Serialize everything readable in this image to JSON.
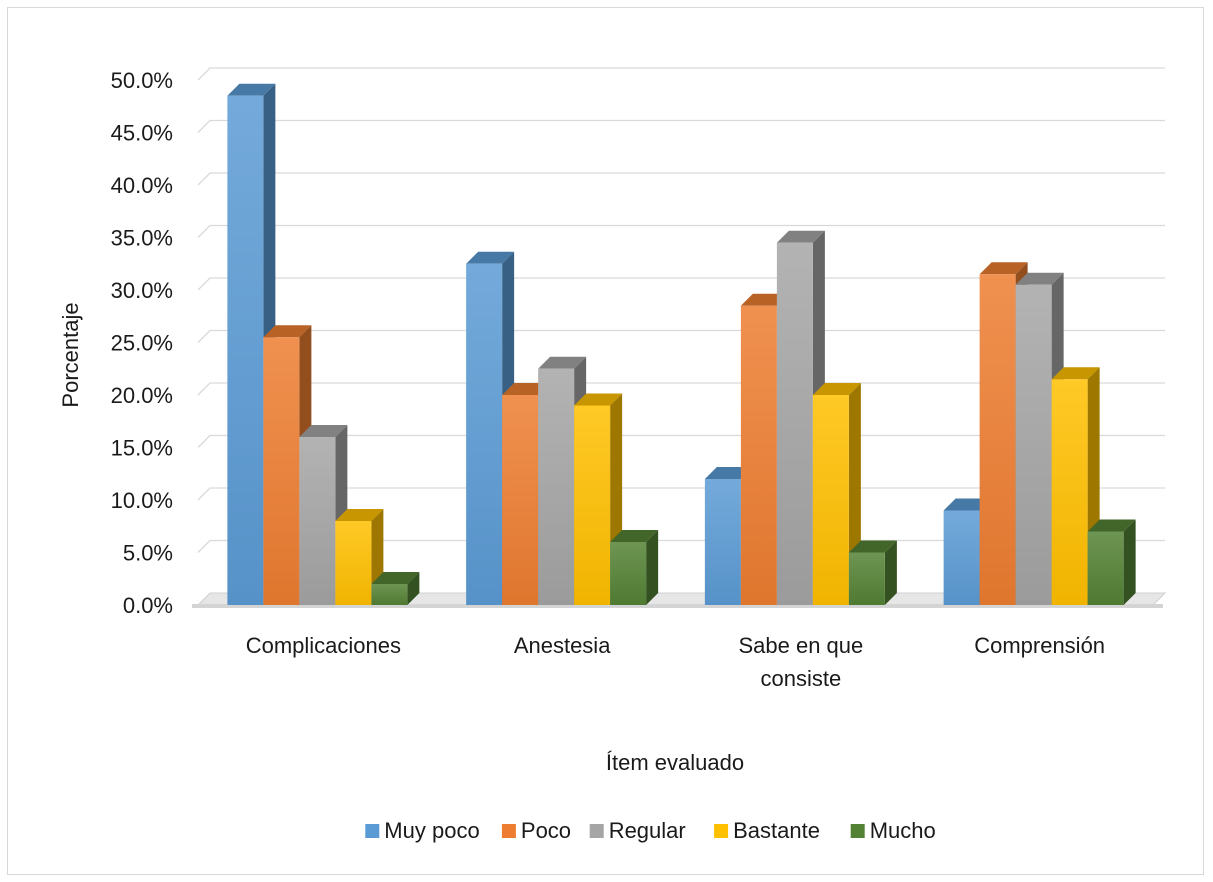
{
  "chart_data": {
    "type": "bar",
    "title": "",
    "xlabel": "Ítem evaluado",
    "ylabel": "Porcentaje",
    "ylim": [
      0,
      50
    ],
    "ytick_step": 5,
    "ytick_format": "0.0%",
    "grid": true,
    "legend_position": "bottom",
    "style": "3d-clustered-column",
    "categories": [
      [
        "Complicaciones"
      ],
      [
        "Anestesia"
      ],
      [
        "Sabe en que",
        "consiste"
      ],
      [
        "Comprensión"
      ]
    ],
    "series": [
      {
        "name": "Muy poco",
        "color": "#5b9bd5",
        "values": [
          48.5,
          32.5,
          12.0,
          9.0
        ]
      },
      {
        "name": "Poco",
        "color": "#ed7d31",
        "values": [
          25.5,
          20.0,
          28.5,
          31.5
        ]
      },
      {
        "name": "Regular",
        "color": "#a5a5a5",
        "values": [
          16.0,
          22.5,
          34.5,
          30.5
        ]
      },
      {
        "name": "Bastante",
        "color": "#ffc000",
        "values": [
          8.0,
          19.0,
          20.0,
          21.5
        ]
      },
      {
        "name": "Mucho",
        "color": "#548235",
        "values": [
          2.0,
          6.0,
          5.0,
          7.0
        ]
      }
    ]
  }
}
